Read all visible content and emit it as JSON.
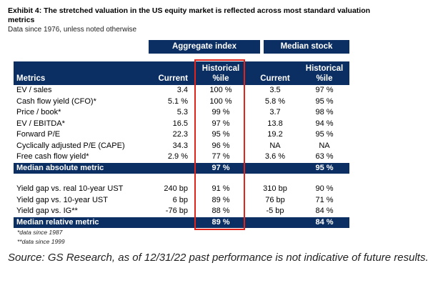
{
  "title": "Exhibit 4: The stretched valuation in the US equity market is reflected across most standard valuation metrics",
  "subtitle": "Data since 1976, unless noted otherwise",
  "group_headers": {
    "aggregate": "Aggregate index",
    "median": "Median stock"
  },
  "columns": {
    "metrics": "Metrics",
    "current": "Current",
    "historical_1": "Historical",
    "historical_2": "%ile",
    "median_current": "Current",
    "median_historical_1": "Historical",
    "median_historical_2": "%ile"
  },
  "absolute_rows": [
    {
      "metric": "EV / sales",
      "current": "3.4",
      "hist": "100 %",
      "mcur": "3.5",
      "mhist": "97 %"
    },
    {
      "metric": "Cash flow yield (CFO)*",
      "current": "5.1 %",
      "hist": "100 %",
      "mcur": "5.8 %",
      "mhist": "95 %"
    },
    {
      "metric": "Price / book*",
      "current": "5.3",
      "hist": "99 %",
      "mcur": "3.7",
      "mhist": "98 %"
    },
    {
      "metric": "EV / EBITDA*",
      "current": "16.5",
      "hist": "97 %",
      "mcur": "13.8",
      "mhist": "94 %"
    },
    {
      "metric": "Forward P/E",
      "current": "22.3",
      "hist": "95 %",
      "mcur": "19.2",
      "mhist": "95 %"
    },
    {
      "metric": "Cyclically adjusted P/E (CAPE)",
      "current": "34.3",
      "hist": "96 %",
      "mcur": "NA",
      "mhist": "NA"
    },
    {
      "metric": "Free cash flow yield*",
      "current": "2.9 %",
      "hist": "77 %",
      "mcur": "3.6 %",
      "mhist": "63 %"
    }
  ],
  "median_absolute": {
    "label": "Median absolute metric",
    "hist": "97 %",
    "mhist": "95 %"
  },
  "relative_rows": [
    {
      "metric": "Yield gap vs. real 10-year UST",
      "current": "240 bp",
      "hist": "91 %",
      "mcur": "310 bp",
      "mhist": "90 %"
    },
    {
      "metric": "Yield gap vs. 10-year UST",
      "current": "6 bp",
      "hist": "89 %",
      "mcur": "76 bp",
      "mhist": "71 %"
    },
    {
      "metric": "Yield gap vs. IG**",
      "current": "-76 bp",
      "hist": "88 %",
      "mcur": "-5 bp",
      "mhist": "84 %"
    }
  ],
  "median_relative": {
    "label": "Median relative metric",
    "hist": "89 %",
    "mhist": "84 %"
  },
  "footnotes": [
    "*data since 1987",
    "**data since 1999"
  ],
  "source": "Source: GS Research, as of 12/31/22 past performance is not indicative of future results.",
  "colors": {
    "header_bg": "#0b2f63",
    "highlight_border": "#e0241b"
  }
}
